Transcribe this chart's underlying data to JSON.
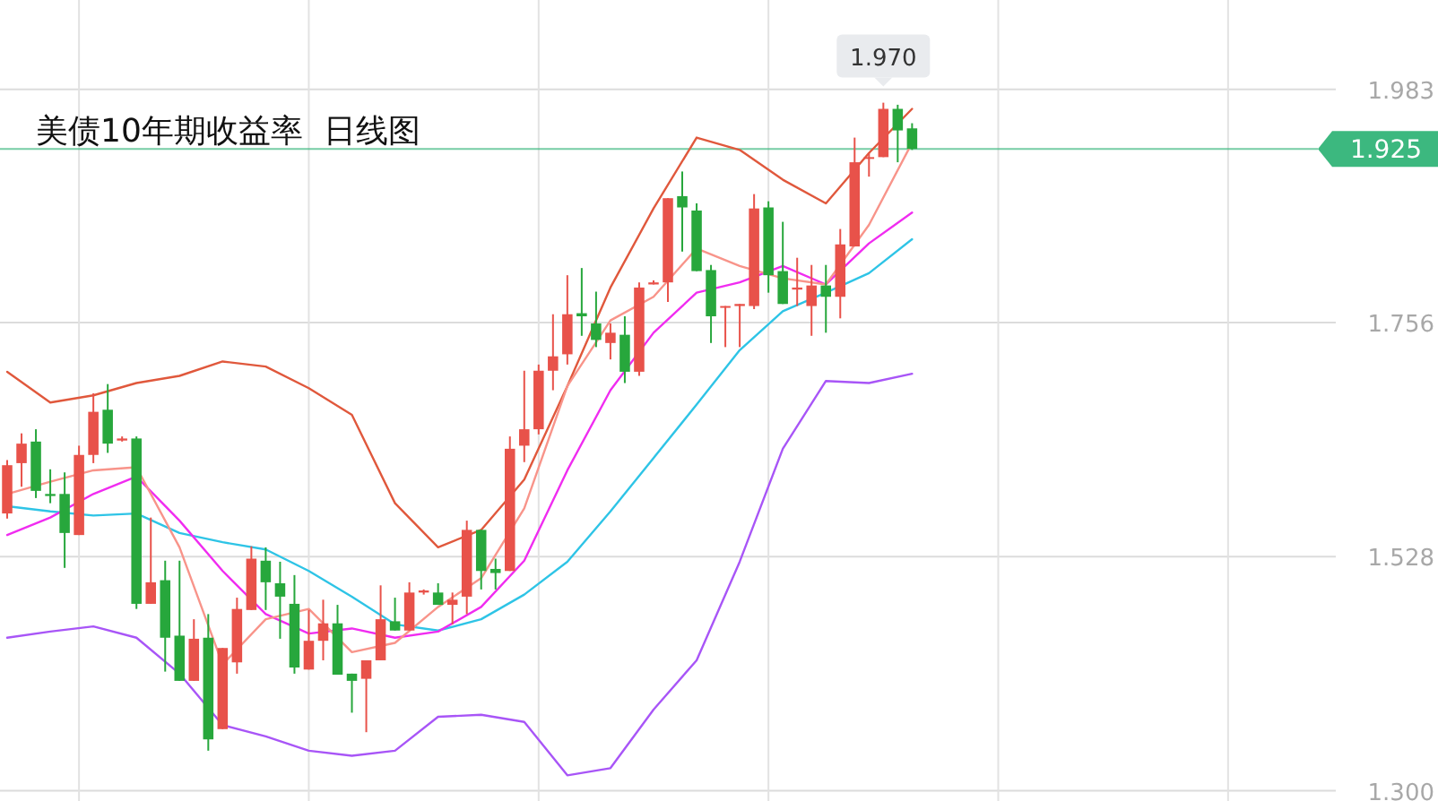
{
  "chart_data": {
    "type": "candlestick",
    "title": "美债10年期收益率  日线图",
    "categories": [
      null,
      null,
      null,
      null,
      null,
      null,
      null,
      null,
      null,
      null,
      null,
      null,
      null,
      null,
      null,
      null,
      null,
      null,
      null,
      null,
      null,
      null,
      null,
      null,
      null,
      null,
      null,
      null,
      null,
      null,
      null,
      null,
      null,
      null,
      null,
      null,
      null,
      null,
      null,
      null,
      null,
      null,
      null,
      null,
      null,
      null,
      null,
      null,
      null,
      null,
      null,
      null,
      null,
      null,
      null,
      null,
      null,
      null,
      null,
      null,
      null,
      null,
      null,
      null,
      null,
      null,
      null,
      null,
      null,
      null,
      null,
      null,
      null,
      null,
      null,
      null,
      null,
      null,
      null,
      null,
      null,
      null,
      null,
      null,
      null,
      null,
      null,
      null,
      null,
      null,
      null,
      null,
      null
    ],
    "ohlc": [
      [
        1.57,
        1.622,
        1.565,
        1.617
      ],
      [
        1.619,
        1.648,
        1.596,
        1.638
      ],
      [
        1.64,
        1.652,
        1.585,
        1.592
      ],
      [
        1.589,
        1.613,
        1.58,
        1.587
      ],
      [
        1.589,
        1.61,
        1.517,
        1.551
      ],
      [
        1.549,
        1.636,
        1.549,
        1.627
      ],
      [
        1.627,
        1.687,
        1.619,
        1.669
      ],
      [
        1.671,
        1.696,
        1.629,
        1.638
      ],
      [
        1.641,
        1.645,
        1.64,
        1.643
      ],
      [
        1.643,
        1.645,
        1.477,
        1.482
      ],
      [
        1.482,
        1.566,
        1.482,
        1.503
      ],
      [
        1.505,
        1.524,
        1.416,
        1.449
      ],
      [
        1.451,
        1.524,
        1.407,
        1.407
      ],
      [
        1.407,
        1.467,
        1.407,
        1.448
      ],
      [
        1.449,
        1.472,
        1.339,
        1.35
      ],
      [
        1.36,
        1.439,
        1.36,
        1.439
      ],
      [
        1.425,
        1.488,
        1.414,
        1.477
      ],
      [
        1.476,
        1.538,
        1.476,
        1.526
      ],
      [
        1.524,
        1.537,
        1.476,
        1.503
      ],
      [
        1.502,
        1.523,
        1.448,
        1.489
      ],
      [
        1.482,
        1.51,
        1.414,
        1.42
      ],
      [
        1.418,
        1.476,
        1.418,
        1.446
      ],
      [
        1.446,
        1.486,
        1.427,
        1.463
      ],
      [
        1.463,
        1.481,
        1.413,
        1.413
      ],
      [
        1.414,
        1.414,
        1.376,
        1.407
      ],
      [
        1.409,
        1.427,
        1.357,
        1.427
      ],
      [
        1.427,
        1.5,
        1.427,
        1.467
      ],
      [
        1.465,
        1.488,
        1.456,
        1.456
      ],
      [
        1.456,
        1.503,
        1.456,
        1.493
      ],
      [
        1.493,
        1.496,
        1.491,
        1.495
      ],
      [
        1.493,
        1.502,
        1.481,
        1.481
      ],
      [
        1.481,
        1.493,
        1.462,
        1.486
      ],
      [
        1.489,
        1.563,
        1.472,
        1.554
      ],
      [
        1.554,
        1.554,
        1.496,
        1.514
      ],
      [
        1.516,
        1.526,
        1.496,
        1.512
      ],
      [
        1.514,
        1.645,
        1.514,
        1.633
      ],
      [
        1.636,
        1.709,
        1.62,
        1.652
      ],
      [
        1.652,
        1.715,
        1.647,
        1.709
      ],
      [
        1.709,
        1.764,
        1.69,
        1.723
      ],
      [
        1.725,
        1.802,
        1.715,
        1.764
      ],
      [
        1.765,
        1.809,
        1.743,
        1.762
      ],
      [
        1.755,
        1.786,
        1.732,
        1.739
      ],
      [
        1.736,
        1.755,
        1.72,
        1.746
      ],
      [
        1.744,
        1.762,
        1.697,
        1.708
      ],
      [
        1.708,
        1.795,
        1.704,
        1.79
      ],
      [
        1.793,
        1.797,
        1.793,
        1.795
      ],
      [
        1.795,
        1.877,
        1.776,
        1.877
      ],
      [
        1.879,
        1.903,
        1.825,
        1.868
      ],
      [
        1.865,
        1.872,
        1.806,
        1.806
      ],
      [
        1.807,
        1.812,
        1.736,
        1.762
      ],
      [
        1.771,
        1.772,
        1.732,
        1.772
      ],
      [
        1.772,
        1.774,
        1.732,
        1.774
      ],
      [
        1.772,
        1.881,
        1.769,
        1.867
      ],
      [
        1.868,
        1.874,
        1.785,
        1.802
      ],
      [
        1.806,
        1.854,
        1.774,
        1.774
      ],
      [
        1.788,
        1.819,
        1.772,
        1.79
      ],
      [
        1.772,
        1.812,
        1.743,
        1.792
      ],
      [
        1.792,
        1.812,
        1.746,
        1.781
      ],
      [
        1.781,
        1.847,
        1.76,
        1.832
      ],
      [
        1.83,
        1.936,
        1.83,
        1.912
      ],
      [
        1.916,
        1.921,
        1.898,
        1.917
      ],
      [
        1.917,
        1.97,
        1.917,
        1.964
      ],
      [
        1.964,
        1.968,
        1.912,
        1.943
      ],
      [
        1.945,
        1.95,
        1.924,
        1.925
      ],
      null,
      null,
      null,
      null,
      null,
      null,
      null,
      null,
      null,
      null,
      null,
      null,
      null,
      null,
      null,
      null,
      null,
      null,
      null,
      null,
      null,
      null,
      null,
      null,
      null,
      null,
      null,
      null,
      null
    ],
    "series": [
      {
        "type": "line",
        "color": "#e0583c",
        "values": [
          1.708,
          null,
          null,
          1.678,
          null,
          null,
          1.685,
          null,
          null,
          1.697,
          null,
          null,
          1.704,
          null,
          null,
          1.718,
          null,
          null,
          1.713,
          null,
          null,
          1.692,
          null,
          null,
          1.666,
          null,
          null,
          1.58,
          null,
          null,
          1.537,
          null,
          null,
          1.554,
          null,
          null,
          1.603,
          null,
          null,
          1.694,
          null,
          null,
          1.79,
          null,
          null,
          1.867,
          null,
          null,
          1.936,
          null,
          null,
          1.924,
          null,
          null,
          1.895,
          null,
          null,
          1.872,
          null,
          null,
          1.921,
          null,
          null,
          1.964,
          null,
          null,
          null,
          null,
          null,
          null,
          null,
          null,
          null,
          null,
          null,
          null,
          null,
          null,
          null,
          null,
          null,
          null,
          null,
          null,
          null,
          null,
          null,
          null,
          null,
          null,
          null,
          null,
          null
        ]
      },
      {
        "type": "line",
        "color": "#a855f7",
        "values": [
          1.449,
          null,
          null,
          1.455,
          null,
          null,
          1.46,
          null,
          null,
          1.449,
          null,
          null,
          1.414,
          null,
          null,
          1.364,
          null,
          null,
          1.353,
          null,
          null,
          1.339,
          null,
          null,
          1.334,
          null,
          null,
          1.339,
          null,
          null,
          1.372,
          null,
          null,
          1.374,
          null,
          null,
          1.367,
          null,
          null,
          1.315,
          null,
          null,
          1.322,
          null,
          null,
          1.379,
          null,
          null,
          1.427,
          null,
          null,
          1.523,
          null,
          null,
          1.633,
          null,
          null,
          1.699,
          null,
          null,
          1.697,
          null,
          null,
          1.706,
          null,
          null,
          null,
          null,
          null,
          null,
          null,
          null,
          null,
          null,
          null,
          null,
          null,
          null,
          null,
          null,
          null,
          null,
          null,
          null,
          null,
          null,
          null,
          null,
          null,
          null,
          null,
          null,
          null
        ]
      },
      {
        "type": "line",
        "color": "#2ec4e6",
        "values": [
          1.577,
          null,
          null,
          1.572,
          null,
          null,
          1.568,
          null,
          null,
          1.57,
          null,
          null,
          1.551,
          null,
          null,
          1.542,
          null,
          null,
          1.535,
          null,
          null,
          1.514,
          null,
          null,
          1.489,
          null,
          null,
          1.462,
          null,
          null,
          1.456,
          null,
          null,
          1.467,
          null,
          null,
          1.491,
          null,
          null,
          1.523,
          null,
          null,
          1.572,
          null,
          null,
          1.624,
          null,
          null,
          1.676,
          null,
          null,
          1.729,
          null,
          null,
          1.767,
          null,
          null,
          1.785,
          null,
          null,
          1.804,
          null,
          null,
          1.837,
          null,
          null,
          null,
          null,
          null,
          null,
          null,
          null,
          null,
          null,
          null,
          null,
          null,
          null,
          null,
          null,
          null,
          null,
          null,
          null,
          null,
          null,
          null,
          null,
          null,
          null,
          null,
          null,
          null
        ]
      },
      {
        "type": "line",
        "color": "#f02cf0",
        "values": [
          1.549,
          null,
          null,
          1.566,
          null,
          null,
          1.589,
          null,
          null,
          1.606,
          null,
          null,
          1.563,
          null,
          null,
          1.514,
          null,
          null,
          1.472,
          null,
          null,
          1.453,
          null,
          null,
          1.458,
          null,
          null,
          1.449,
          null,
          null,
          1.455,
          null,
          null,
          1.479,
          null,
          null,
          1.524,
          null,
          null,
          1.612,
          null,
          null,
          1.69,
          null,
          null,
          1.746,
          null,
          null,
          1.785,
          null,
          null,
          1.795,
          null,
          null,
          1.811,
          null,
          null,
          1.793,
          null,
          null,
          1.833,
          null,
          null,
          1.863,
          null,
          null,
          null,
          null,
          null,
          null,
          null,
          null,
          null,
          null,
          null,
          null,
          null,
          null,
          null,
          null,
          null,
          null,
          null,
          null,
          null,
          null,
          null,
          null,
          null,
          null,
          null,
          null,
          null
        ]
      },
      {
        "type": "line",
        "color": "#f8948a",
        "values": [
          1.589,
          null,
          null,
          1.601,
          null,
          null,
          1.612,
          null,
          null,
          1.615,
          null,
          null,
          1.537,
          null,
          null,
          1.423,
          null,
          null,
          1.467,
          null,
          null,
          1.477,
          null,
          null,
          1.435,
          null,
          null,
          1.444,
          null,
          null,
          1.479,
          null,
          null,
          1.507,
          null,
          null,
          1.575,
          null,
          null,
          1.694,
          null,
          null,
          1.758,
          null,
          null,
          1.781,
          null,
          null,
          1.828,
          null,
          null,
          1.811,
          null,
          null,
          1.799,
          null,
          null,
          1.793,
          null,
          null,
          1.851,
          null,
          null,
          1.931,
          null,
          null,
          null,
          null,
          null,
          null,
          null,
          null,
          null,
          null,
          null,
          null,
          null,
          null,
          null,
          null,
          null,
          null,
          null,
          null,
          null,
          null,
          null,
          null,
          null,
          null,
          null,
          null,
          null
        ]
      }
    ],
    "ylim": [
      1.29,
      2.07
    ],
    "yticks": [
      1.983,
      1.756,
      1.528,
      {
        "value": 1.3,
        "label": "1.300"
      }
    ],
    "grid": true,
    "tick_labels": "y",
    "ref_lines": [
      {
        "axis": "y",
        "value": 1.925,
        "label": "1.925",
        "color": "#3cb87f"
      }
    ],
    "annotations": [
      "1.970"
    ]
  }
}
